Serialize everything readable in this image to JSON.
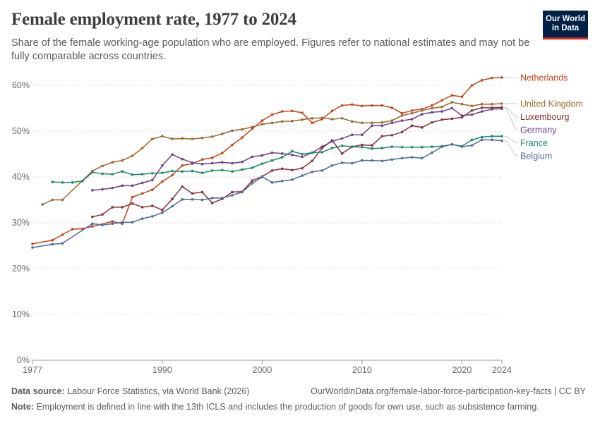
{
  "header": {
    "title": "Female employment rate, 1977 to 2024",
    "subtitle": "Share of the female working-age population who are employed. Figures refer to national estimates and may not be fully comparable across countries.",
    "logo_line1": "Our World",
    "logo_line2": "in Data"
  },
  "footer": {
    "source_label": "Data source:",
    "source_text": "Labour Force Statistics, via World Bank (2026)",
    "url_text": "OurWorldinData.org/female-labor-force-participation-key-facts | CC BY",
    "note_label": "Note:",
    "note_text": "Employment is defined in line with the 13th ICLS and includes the production of goods for own use, such as subsistence farming."
  },
  "chart_data": {
    "type": "line",
    "xlim": [
      1977,
      2024
    ],
    "ylim": [
      0,
      60
    ],
    "grid": true,
    "y_ticks": [
      0,
      10,
      20,
      30,
      40,
      50,
      60
    ],
    "y_tick_labels": [
      "0%",
      "10%",
      "20%",
      "30%",
      "40%",
      "50%",
      "60%"
    ],
    "x_ticks": [
      1977,
      1990,
      2000,
      2010,
      2020,
      2024
    ],
    "x_tick_labels": [
      "1977",
      "1990",
      "2000",
      "2010",
      "2020",
      "2024"
    ],
    "series": [
      {
        "name": "Netherlands",
        "color": "#c4461b",
        "x": [
          1977,
          1979,
          1980,
          1981,
          1982,
          1983,
          1985,
          1986,
          1987,
          1988,
          1989,
          1990,
          1991,
          1992,
          1993,
          1994,
          1995,
          1996,
          1997,
          1998,
          1999,
          2000,
          2001,
          2002,
          2003,
          2004,
          2005,
          2006,
          2007,
          2008,
          2009,
          2010,
          2011,
          2012,
          2013,
          2014,
          2015,
          2016,
          2017,
          2018,
          2019,
          2020,
          2021,
          2022,
          2023,
          2024
        ],
        "y": [
          25.4,
          26.2,
          27.4,
          28.6,
          28.7,
          29.2,
          30.3,
          29.8,
          35.6,
          36.4,
          37.2,
          39.0,
          40.4,
          42.5,
          42.9,
          43.8,
          44.2,
          45.2,
          47.0,
          48.6,
          50.5,
          52.3,
          53.6,
          54.3,
          54.4,
          54.0,
          51.8,
          52.6,
          54.4,
          55.6,
          55.8,
          55.5,
          55.6,
          55.6,
          55.1,
          53.9,
          54.5,
          54.8,
          55.6,
          56.7,
          57.8,
          57.5,
          60.0,
          61.1,
          61.6,
          61.7
        ]
      },
      {
        "name": "United Kingdom",
        "color": "#a2652d",
        "x": [
          1978,
          1979,
          1980,
          1983,
          1984,
          1985,
          1986,
          1987,
          1988,
          1989,
          1990,
          1991,
          1992,
          1993,
          1994,
          1995,
          1996,
          1997,
          1998,
          1999,
          2000,
          2001,
          2002,
          2003,
          2004,
          2005,
          2006,
          2007,
          2008,
          2009,
          2010,
          2011,
          2012,
          2013,
          2014,
          2015,
          2016,
          2017,
          2018,
          2019,
          2020,
          2021,
          2022,
          2023,
          2024
        ],
        "y": [
          34.0,
          35.0,
          35.0,
          41.3,
          42.4,
          43.2,
          43.6,
          44.6,
          46.3,
          48.3,
          48.9,
          48.3,
          48.4,
          48.3,
          48.5,
          48.8,
          49.4,
          50.1,
          50.4,
          50.9,
          51.5,
          51.8,
          52.1,
          52.2,
          52.5,
          52.8,
          52.9,
          52.6,
          52.8,
          52.1,
          51.8,
          51.8,
          51.9,
          52.3,
          53.4,
          53.9,
          54.5,
          55.0,
          55.3,
          56.3,
          55.9,
          55.5,
          55.9,
          55.9,
          56.0
        ]
      },
      {
        "name": "Luxembourg",
        "color": "#883039",
        "x": [
          1983,
          1984,
          1985,
          1986,
          1987,
          1988,
          1989,
          1990,
          1991,
          1992,
          1993,
          1994,
          1995,
          1996,
          1997,
          1998,
          1999,
          2000,
          2001,
          2002,
          2003,
          2004,
          2005,
          2006,
          2007,
          2008,
          2009,
          2010,
          2011,
          2012,
          2013,
          2014,
          2015,
          2016,
          2017,
          2018,
          2019,
          2020,
          2021,
          2022,
          2023,
          2024
        ],
        "y": [
          31.3,
          31.8,
          33.4,
          33.4,
          34.2,
          33.4,
          33.7,
          32.8,
          35.2,
          37.9,
          36.4,
          36.7,
          34.3,
          35.2,
          36.7,
          36.8,
          39.2,
          40.1,
          41.4,
          41.8,
          41.5,
          41.9,
          43.5,
          46.3,
          48.0,
          45.1,
          46.6,
          47.0,
          46.9,
          48.9,
          49.1,
          49.8,
          51.2,
          50.8,
          51.9,
          52.5,
          52.7,
          53.0,
          54.5,
          55.1,
          55.1,
          55.2
        ]
      },
      {
        "name": "Germany",
        "color": "#6d3e91",
        "x": [
          1983,
          1984,
          1985,
          1986,
          1987,
          1988,
          1989,
          1990,
          1991,
          1992,
          1993,
          1994,
          1995,
          1996,
          1997,
          1998,
          1999,
          2000,
          2001,
          2002,
          2003,
          2004,
          2005,
          2006,
          2007,
          2008,
          2009,
          2010,
          2011,
          2012,
          2013,
          2014,
          2015,
          2016,
          2017,
          2018,
          2019,
          2020,
          2021,
          2022,
          2023,
          2024
        ],
        "y": [
          37.1,
          37.3,
          37.6,
          38.1,
          38.1,
          38.7,
          39.3,
          42.5,
          44.9,
          43.9,
          43.1,
          42.8,
          43.0,
          43.2,
          43.0,
          43.3,
          44.4,
          44.7,
          45.3,
          45.1,
          44.8,
          44.4,
          45.3,
          46.6,
          47.8,
          48.4,
          49.2,
          49.2,
          51.2,
          51.2,
          51.8,
          52.3,
          52.6,
          53.7,
          54.1,
          54.3,
          55.0,
          53.4,
          53.6,
          54.3,
          54.8,
          54.9
        ]
      },
      {
        "name": "France",
        "color": "#1e8a66",
        "x": [
          1979,
          1980,
          1981,
          1982,
          1983,
          1984,
          1985,
          1986,
          1987,
          1988,
          1989,
          1990,
          1991,
          1992,
          1993,
          1994,
          1995,
          1996,
          1997,
          1998,
          1999,
          2000,
          2001,
          2002,
          2003,
          2004,
          2005,
          2006,
          2007,
          2008,
          2009,
          2010,
          2011,
          2012,
          2013,
          2014,
          2015,
          2016,
          2017,
          2018,
          2019,
          2020,
          2021,
          2022,
          2023,
          2024
        ],
        "y": [
          38.9,
          38.8,
          38.8,
          39.1,
          41.0,
          40.7,
          40.6,
          41.2,
          40.5,
          40.6,
          40.8,
          40.9,
          41.3,
          41.2,
          41.3,
          40.9,
          41.4,
          41.5,
          41.2,
          41.6,
          42.0,
          42.9,
          43.6,
          44.3,
          45.6,
          45.0,
          45.3,
          45.4,
          46.3,
          46.8,
          46.6,
          46.5,
          46.2,
          46.3,
          46.6,
          46.5,
          46.5,
          46.5,
          46.6,
          46.7,
          47.1,
          46.7,
          48.1,
          48.7,
          48.9,
          48.9
        ]
      },
      {
        "name": "Belgium",
        "color": "#4c6a9c",
        "x": [
          1977,
          1979,
          1980,
          1983,
          1984,
          1985,
          1986,
          1987,
          1988,
          1989,
          1990,
          1991,
          1992,
          1993,
          1994,
          1995,
          1996,
          1997,
          1998,
          1999,
          2000,
          2001,
          2002,
          2003,
          2004,
          2005,
          2006,
          2007,
          2008,
          2009,
          2010,
          2011,
          2012,
          2013,
          2014,
          2015,
          2016,
          2017,
          2018,
          2019,
          2020,
          2021,
          2022,
          2023,
          2024
        ],
        "y": [
          24.6,
          25.3,
          25.5,
          29.8,
          29.5,
          29.8,
          30.1,
          30.1,
          30.9,
          31.4,
          32.2,
          33.6,
          35.1,
          35.1,
          35.0,
          35.4,
          35.4,
          36.0,
          36.7,
          38.6,
          40.0,
          38.8,
          39.1,
          39.4,
          40.3,
          41.1,
          41.4,
          42.5,
          43.1,
          43.0,
          43.6,
          43.6,
          43.5,
          43.8,
          44.1,
          44.3,
          44.1,
          45.3,
          46.6,
          47.1,
          46.6,
          46.9,
          48.1,
          48.1,
          47.9
        ]
      }
    ],
    "legend": {
      "placement": "right-end-labels"
    }
  }
}
